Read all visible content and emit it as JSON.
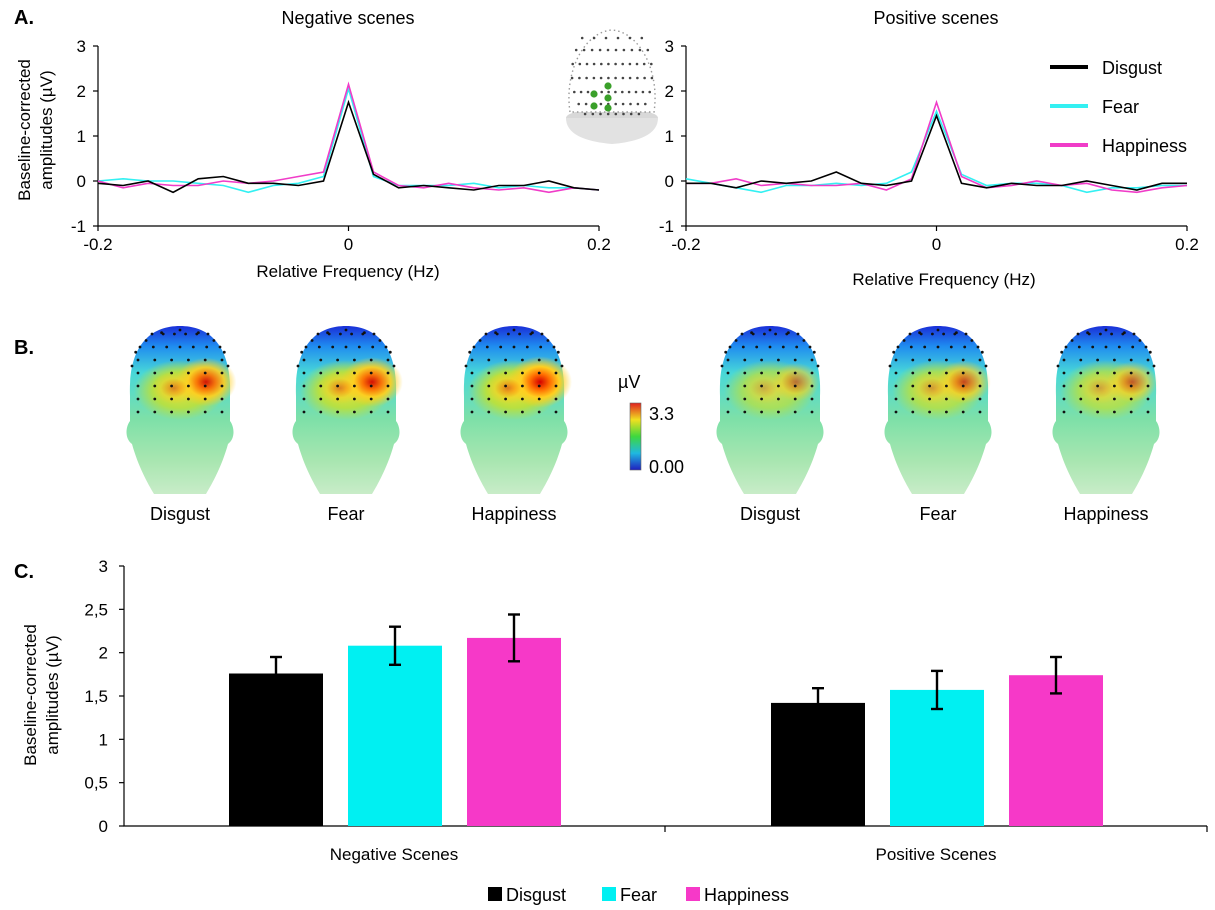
{
  "colors": {
    "disgust": "#000000",
    "fear": "#33f0f2",
    "happiness": "#f03cc8",
    "bar_disgust": "#000000",
    "bar_fear": "#00f0f2",
    "bar_happiness": "#f639c8"
  },
  "panel_labels": {
    "a": "A.",
    "b": "B.",
    "c": "C."
  },
  "panel_a": {
    "ylabel_line1": "Baseline-corrected",
    "ylabel_line2": "amplitudes (µV)",
    "xlabel": "Relative  Frequency (Hz)",
    "legend": [
      "Disgust",
      "Fear",
      "Happiness"
    ],
    "electrode_icon": "head-electrode-map-icon"
  },
  "chart_data": [
    {
      "type": "line",
      "title": "Negative  scenes",
      "xlabel": "Relative  Frequency (Hz)",
      "ylabel": "Baseline-corrected amplitudes (µV)",
      "xlim": [
        -0.2,
        0.2
      ],
      "ylim": [
        -1,
        3
      ],
      "xticks": [
        "-0.2",
        "0",
        "0.2"
      ],
      "yticks": [
        "-1",
        "0",
        "1",
        "2",
        "3"
      ],
      "x": [
        -0.2,
        -0.18,
        -0.16,
        -0.14,
        -0.12,
        -0.1,
        -0.08,
        -0.06,
        -0.04,
        -0.02,
        0,
        0.02,
        0.04,
        0.06,
        0.08,
        0.1,
        0.12,
        0.14,
        0.16,
        0.18,
        0.2
      ],
      "series": [
        {
          "name": "Disgust",
          "values": [
            -0.05,
            -0.1,
            0.0,
            -0.25,
            0.05,
            0.1,
            -0.05,
            -0.05,
            -0.1,
            0.0,
            1.75,
            0.15,
            -0.15,
            -0.1,
            -0.15,
            -0.2,
            -0.1,
            -0.1,
            0.0,
            -0.15,
            -0.2
          ]
        },
        {
          "name": "Fear",
          "values": [
            0.0,
            0.05,
            0.0,
            0.0,
            -0.05,
            -0.1,
            -0.25,
            -0.1,
            -0.05,
            0.1,
            2.05,
            0.1,
            -0.1,
            -0.1,
            -0.1,
            -0.05,
            -0.15,
            -0.1,
            -0.15,
            -0.15,
            -0.2
          ]
        },
        {
          "name": "Happiness",
          "values": [
            0.0,
            -0.15,
            -0.05,
            -0.1,
            -0.1,
            0.0,
            -0.05,
            0.0,
            0.1,
            0.2,
            2.15,
            0.2,
            -0.1,
            -0.15,
            -0.05,
            -0.15,
            -0.2,
            -0.15,
            -0.25,
            -0.15,
            -0.2
          ]
        }
      ]
    },
    {
      "type": "line",
      "title": "Positive scenes",
      "xlabel": "Relative  Frequency (Hz)",
      "xlim": [
        -0.2,
        0.2
      ],
      "ylim": [
        -1,
        3
      ],
      "xticks": [
        "-0.2",
        "0",
        "0.2"
      ],
      "yticks": [
        "-1",
        "0",
        "1",
        "2",
        "3"
      ],
      "x": [
        -0.2,
        -0.18,
        -0.16,
        -0.14,
        -0.12,
        -0.1,
        -0.08,
        -0.06,
        -0.04,
        -0.02,
        0,
        0.02,
        0.04,
        0.06,
        0.08,
        0.1,
        0.12,
        0.14,
        0.16,
        0.18,
        0.2
      ],
      "series": [
        {
          "name": "Disgust",
          "values": [
            -0.05,
            -0.05,
            -0.15,
            0.0,
            -0.05,
            0.0,
            0.2,
            -0.05,
            -0.1,
            0.0,
            1.45,
            -0.05,
            -0.15,
            -0.05,
            -0.1,
            -0.1,
            0.0,
            -0.1,
            -0.2,
            -0.05,
            -0.05
          ]
        },
        {
          "name": "Fear",
          "values": [
            0.05,
            -0.05,
            -0.15,
            -0.25,
            -0.1,
            -0.1,
            -0.05,
            -0.1,
            -0.05,
            0.2,
            1.55,
            0.15,
            -0.1,
            -0.05,
            -0.05,
            -0.1,
            -0.25,
            -0.15,
            -0.15,
            -0.1,
            -0.1
          ]
        },
        {
          "name": "Happiness",
          "values": [
            -0.05,
            -0.05,
            0.05,
            -0.1,
            -0.05,
            -0.1,
            -0.1,
            -0.05,
            -0.2,
            0.05,
            1.75,
            0.1,
            -0.15,
            -0.1,
            0.0,
            -0.1,
            -0.05,
            -0.2,
            -0.25,
            -0.15,
            -0.1
          ]
        }
      ]
    },
    {
      "type": "bar",
      "xlabel": "",
      "ylabel": "Baseline-corrected amplitudes (µV)",
      "ylim": [
        0,
        3
      ],
      "yticks": [
        "0",
        "0,5",
        "1",
        "1,5",
        "2",
        "2,5",
        "3"
      ],
      "categories": [
        "Negative Scenes",
        "Positive Scenes"
      ],
      "series": [
        {
          "name": "Disgust",
          "values": [
            1.76,
            1.42
          ],
          "errors": [
            0.19,
            0.17
          ]
        },
        {
          "name": "Fear",
          "values": [
            2.08,
            1.57
          ],
          "errors": [
            0.22,
            0.22
          ]
        },
        {
          "name": "Happiness",
          "values": [
            2.17,
            1.74
          ],
          "errors": [
            0.27,
            0.21
          ]
        }
      ],
      "legend": [
        "Disgust",
        "Fear",
        "Happiness"
      ],
      "legend_position": "bottom-center"
    }
  ],
  "topo": {
    "unit": "µV",
    "max_label": "3.3",
    "min_label": "0.00",
    "negative": [
      {
        "label": "Disgust",
        "intensity": 0.9
      },
      {
        "label": "Fear",
        "intensity": 0.93
      },
      {
        "label": "Happiness",
        "intensity": 1.0
      }
    ],
    "positive": [
      {
        "label": "Disgust",
        "intensity": 0.5
      },
      {
        "label": "Fear",
        "intensity": 0.68
      },
      {
        "label": "Happiness",
        "intensity": 0.6
      }
    ]
  },
  "panel_c": {
    "ylabel_line1": "Baseline-corrected",
    "ylabel_line2": "amplitudes (µV)"
  }
}
